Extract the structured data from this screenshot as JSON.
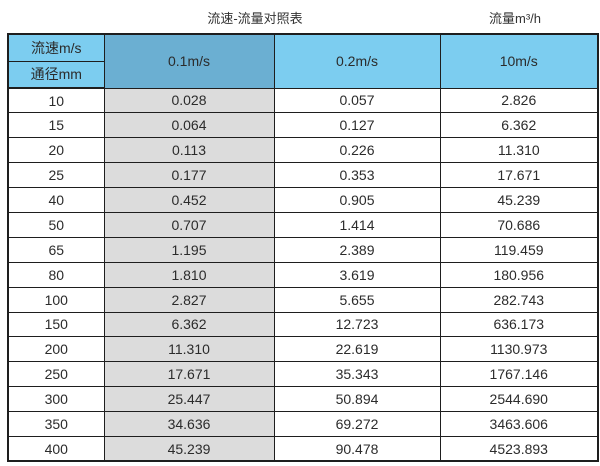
{
  "titles": {
    "table_title": "流速-流量对照表",
    "unit_label": "流量m³/h"
  },
  "chart_data": {
    "type": "table",
    "title": "流速-流量对照表",
    "right_caption": "流量m³/h",
    "corner": {
      "top": "流速m/s",
      "bottom": "通径mm"
    },
    "velocity_columns": [
      "0.1m/s",
      "0.2m/s",
      "10m/s"
    ],
    "diameter_rows": [
      {
        "diameter_mm": "10",
        "values": [
          "0.028",
          "0.057",
          "2.826"
        ]
      },
      {
        "diameter_mm": "15",
        "values": [
          "0.064",
          "0.127",
          "6.362"
        ]
      },
      {
        "diameter_mm": "20",
        "values": [
          "0.113",
          "0.226",
          "11.310"
        ]
      },
      {
        "diameter_mm": "25",
        "values": [
          "0.177",
          "0.353",
          "17.671"
        ]
      },
      {
        "diameter_mm": "40",
        "values": [
          "0.452",
          "0.905",
          "45.239"
        ]
      },
      {
        "diameter_mm": "50",
        "values": [
          "0.707",
          "1.414",
          "70.686"
        ]
      },
      {
        "diameter_mm": "65",
        "values": [
          "1.195",
          "2.389",
          "119.459"
        ]
      },
      {
        "diameter_mm": "80",
        "values": [
          "1.810",
          "3.619",
          "180.956"
        ]
      },
      {
        "diameter_mm": "100",
        "values": [
          "2.827",
          "5.655",
          "282.743"
        ]
      },
      {
        "diameter_mm": "150",
        "values": [
          "6.362",
          "12.723",
          "636.173"
        ]
      },
      {
        "diameter_mm": "200",
        "values": [
          "11.310",
          "22.619",
          "1130.973"
        ]
      },
      {
        "diameter_mm": "250",
        "values": [
          "17.671",
          "35.343",
          "1767.146"
        ]
      },
      {
        "diameter_mm": "300",
        "values": [
          "25.447",
          "50.894",
          "2544.690"
        ]
      },
      {
        "diameter_mm": "350",
        "values": [
          "34.636",
          "69.272",
          "3463.606"
        ]
      },
      {
        "diameter_mm": "400",
        "values": [
          "45.239",
          "90.478",
          "4523.893"
        ]
      }
    ]
  },
  "colors": {
    "header_blue": "#7ccdf0",
    "header_blue_dark": "#6bafd2",
    "column_gray": "#dcdcdc",
    "border": "#1e1e1e"
  }
}
